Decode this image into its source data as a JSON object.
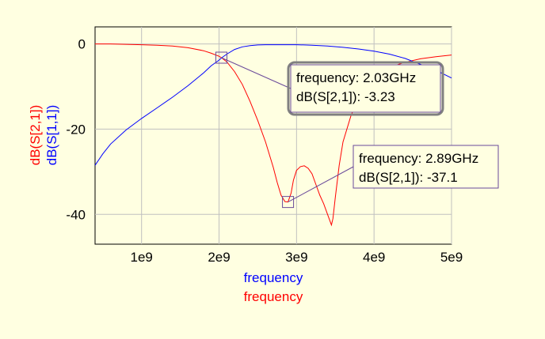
{
  "chart_data": {
    "type": "line",
    "x_axis": {
      "title_lines": [
        {
          "text": "frequency",
          "color": "#0000ff"
        },
        {
          "text": "frequency",
          "color": "#ff0000"
        }
      ],
      "ticks": [
        1000000000,
        2000000000,
        3000000000,
        4000000000,
        5000000000
      ],
      "tick_labels": [
        "1e9",
        "2e9",
        "3e9",
        "4e9",
        "5e9"
      ],
      "range": [
        400000000,
        5000000000
      ]
    },
    "y_axis": {
      "title_lines": [
        {
          "text": "dB(S[2,1])",
          "color": "#ff0000"
        },
        {
          "text": "dB(S[1,1])",
          "color": "#0000ff"
        }
      ],
      "ticks": [
        0,
        -20,
        -40
      ],
      "tick_labels": [
        "0",
        "-20",
        "-40"
      ],
      "range": [
        -47,
        4
      ]
    },
    "grid": true,
    "series": [
      {
        "name": "dB(S[2,1])",
        "color": "#ff0000",
        "x": [
          400000000,
          600000000,
          800000000,
          1000000000,
          1200000000,
          1400000000,
          1600000000,
          1800000000,
          1900000000,
          2000000000,
          2030000000,
          2100000000,
          2200000000,
          2300000000,
          2400000000,
          2500000000,
          2600000000,
          2700000000,
          2750000000,
          2800000000,
          2850000000,
          2890000000,
          2930000000,
          2960000000,
          3000000000,
          3050000000,
          3100000000,
          3150000000,
          3200000000,
          3250000000,
          3300000000,
          3350000000,
          3400000000,
          3450000000,
          3470000000,
          3500000000,
          3550000000,
          3600000000,
          3700000000,
          3800000000,
          3900000000,
          4000000000,
          4200000000,
          4400000000,
          4600000000,
          4800000000,
          5000000000
        ],
        "y": [
          0,
          0,
          -0.1,
          -0.2,
          -0.3,
          -0.5,
          -0.9,
          -1.6,
          -2.2,
          -2.9,
          -3.23,
          -4.2,
          -6.5,
          -9.5,
          -13.5,
          -18,
          -23,
          -29,
          -32.5,
          -35.5,
          -37,
          -37.1,
          -35,
          -32,
          -29.7,
          -28.8,
          -28.6,
          -29.2,
          -30.5,
          -33,
          -35.5,
          -37.5,
          -40,
          -42.5,
          -41,
          -36,
          -28.5,
          -23,
          -17,
          -12.5,
          -9.5,
          -7.5,
          -5.5,
          -4.3,
          -3.5,
          -3,
          -2.6
        ]
      },
      {
        "name": "dB(S[1,1])",
        "color": "#0000ff",
        "x": [
          400000000,
          500000000,
          600000000,
          800000000,
          1000000000,
          1200000000,
          1400000000,
          1600000000,
          1800000000,
          1900000000,
          2000000000,
          2030000000,
          2100000000,
          2200000000,
          2300000000,
          2400000000,
          2500000000,
          2600000000,
          2800000000,
          3000000000,
          3200000000,
          3400000000,
          3600000000,
          3800000000,
          4000000000,
          4200000000,
          4400000000,
          4600000000,
          4800000000,
          5000000000
        ],
        "y": [
          -28.5,
          -25.8,
          -23.5,
          -20.2,
          -17.5,
          -15,
          -12.5,
          -9.8,
          -6.8,
          -5.1,
          -3.8,
          -3.3,
          -2.4,
          -1.3,
          -0.7,
          -0.4,
          -0.25,
          -0.2,
          -0.2,
          -0.2,
          -0.3,
          -0.5,
          -0.8,
          -1.2,
          -1.7,
          -2.4,
          -3.4,
          -4.8,
          -6.2,
          -8
        ]
      }
    ],
    "markers": [
      {
        "name": "m1",
        "x": 2030000000,
        "y": -3.23,
        "lines": [
          "frequency: 2.03GHz",
          "dB(S[2,1]): -3.23"
        ],
        "selected": true
      },
      {
        "name": "m2",
        "x": 2890000000,
        "y": -37.1,
        "lines": [
          "frequency: 2.89GHz",
          "dB(S[2,1]): -37.1"
        ],
        "selected": false
      }
    ]
  }
}
